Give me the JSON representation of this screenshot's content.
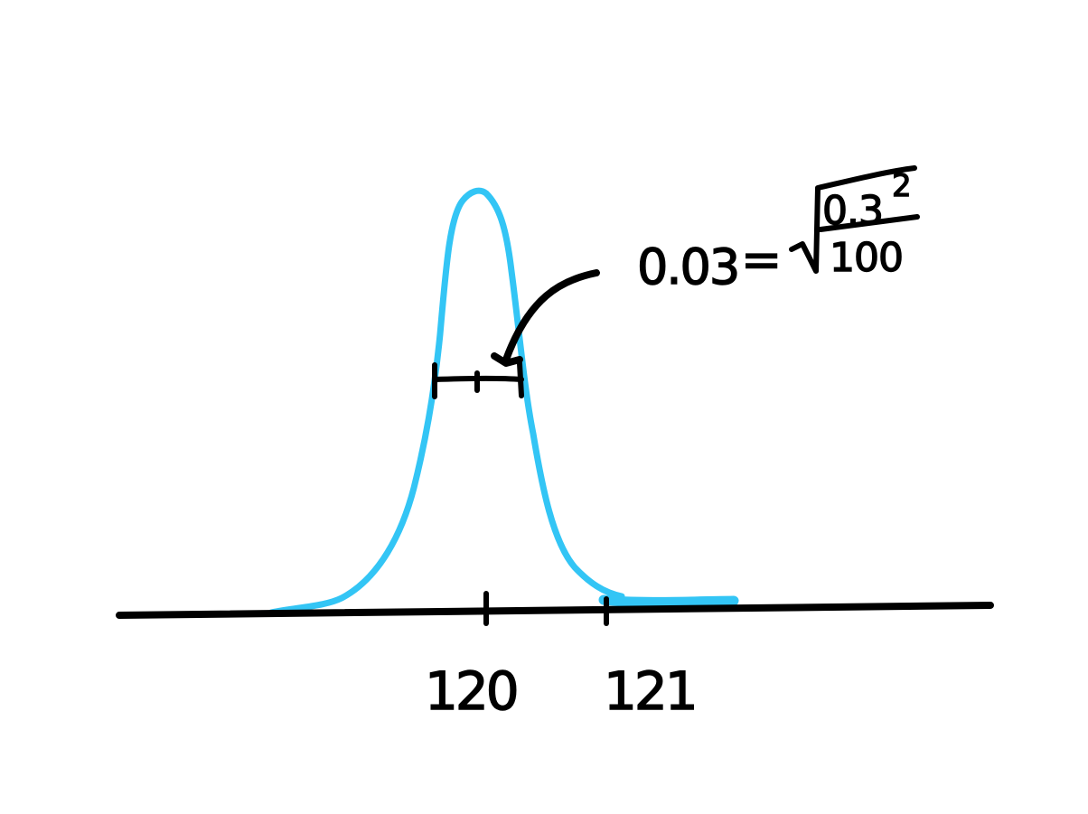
{
  "colors": {
    "curve": "#33c5f5",
    "ink": "#000000",
    "background": "#ffffff"
  },
  "axis": {
    "tick_labels": [
      "120",
      "121"
    ]
  },
  "annotation": {
    "lhs": "0.03",
    "equals": "=",
    "numerator": "0.3",
    "exponent": "2",
    "denominator": "100"
  },
  "icons": {
    "error_bar": "interval-bar-icon",
    "arrow": "curved-arrow-icon",
    "radical": "square-root-icon"
  }
}
